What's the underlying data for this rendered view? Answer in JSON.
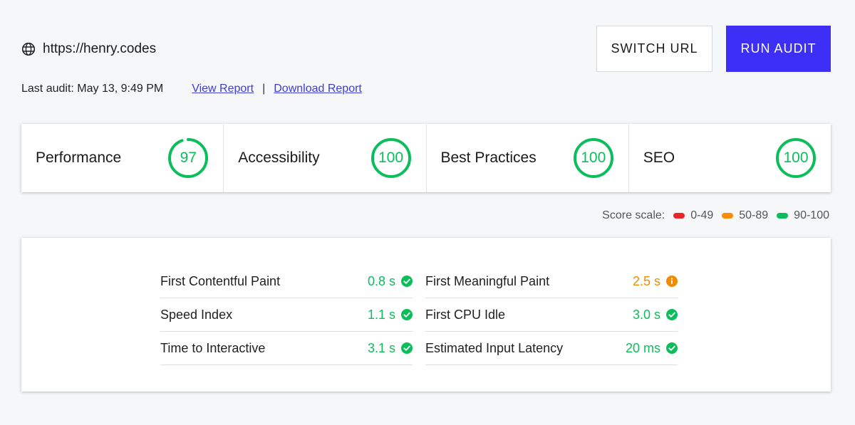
{
  "header": {
    "url": "https://henry.codes",
    "last_audit": "Last audit: May 13, 9:49 PM",
    "view_report": "View Report",
    "separator": "|",
    "download_report": "Download Report",
    "switch_url": "SWITCH URL",
    "run_audit": "RUN AUDIT"
  },
  "scores": [
    {
      "label": "Performance",
      "value": "97",
      "fraction": 0.97
    },
    {
      "label": "Accessibility",
      "value": "100",
      "fraction": 1.0
    },
    {
      "label": "Best Practices",
      "value": "100",
      "fraction": 1.0
    },
    {
      "label": "SEO",
      "value": "100",
      "fraction": 1.0
    }
  ],
  "scale": {
    "label": "Score scale:",
    "ranges": [
      {
        "label": "0-49",
        "color": "#e9262a"
      },
      {
        "label": "50-89",
        "color": "#fa8c0a"
      },
      {
        "label": "90-100",
        "color": "#0cbd5b"
      }
    ]
  },
  "metrics": {
    "left": [
      {
        "name": "First Contentful Paint",
        "value": "0.8 s",
        "status": "pass"
      },
      {
        "name": "Speed Index",
        "value": "1.1 s",
        "status": "pass"
      },
      {
        "name": "Time to Interactive",
        "value": "3.1 s",
        "status": "pass"
      }
    ],
    "right": [
      {
        "name": "First Meaningful Paint",
        "value": "2.5 s",
        "status": "average"
      },
      {
        "name": "First CPU Idle",
        "value": "3.0 s",
        "status": "pass"
      },
      {
        "name": "Estimated Input Latency",
        "value": "20 ms",
        "status": "pass"
      }
    ]
  },
  "colors": {
    "pass": "#0cbd5b",
    "average": "#f08c00",
    "accent": "#3d2ff5",
    "link": "#3d3dd6"
  },
  "icons": {
    "globe": "globe-icon",
    "pass": "check-circle-icon",
    "average": "info-circle-icon"
  }
}
